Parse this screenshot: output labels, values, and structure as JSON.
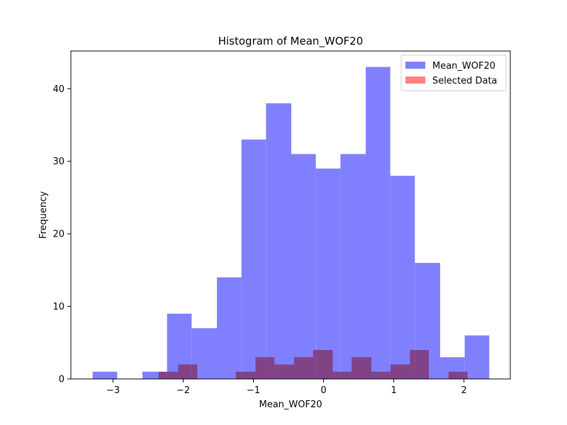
{
  "chart_data": {
    "type": "bar",
    "title": "Histogram of Mean_WOF20",
    "xlabel": "Mean_WOF20",
    "ylabel": "Frequency",
    "xlim": [
      -3.6,
      2.66
    ],
    "ylim": [
      0,
      45.2
    ],
    "x_ticks": [
      -3,
      -2,
      -1,
      0,
      1,
      2
    ],
    "y_ticks": [
      0,
      10,
      20,
      30,
      40
    ],
    "grid": false,
    "legend_placement": "top-right",
    "series": [
      {
        "name": "Mean_WOF20",
        "color": "#8080ff",
        "bins": [
          {
            "x0": -3.29,
            "x1": -2.94,
            "count": 1
          },
          {
            "x0": -2.94,
            "x1": -2.58,
            "count": 0
          },
          {
            "x0": -2.58,
            "x1": -2.23,
            "count": 1
          },
          {
            "x0": -2.23,
            "x1": -1.88,
            "count": 9
          },
          {
            "x0": -1.88,
            "x1": -1.52,
            "count": 7
          },
          {
            "x0": -1.52,
            "x1": -1.17,
            "count": 14
          },
          {
            "x0": -1.17,
            "x1": -0.82,
            "count": 33
          },
          {
            "x0": -0.82,
            "x1": -0.46,
            "count": 38
          },
          {
            "x0": -0.46,
            "x1": -0.11,
            "count": 31
          },
          {
            "x0": -0.11,
            "x1": 0.24,
            "count": 29
          },
          {
            "x0": 0.24,
            "x1": 0.6,
            "count": 31
          },
          {
            "x0": 0.6,
            "x1": 0.95,
            "count": 43
          },
          {
            "x0": 0.95,
            "x1": 1.3,
            "count": 28
          },
          {
            "x0": 1.3,
            "x1": 1.66,
            "count": 16
          },
          {
            "x0": 1.66,
            "x1": 2.01,
            "count": 3
          },
          {
            "x0": 2.01,
            "x1": 2.36,
            "count": 6
          }
        ]
      },
      {
        "name": "Selected Data",
        "color": "#ff8080",
        "bins": [
          {
            "x0": -2.35,
            "x1": -2.07,
            "count": 1
          },
          {
            "x0": -2.07,
            "x1": -1.8,
            "count": 2
          },
          {
            "x0": -1.8,
            "x1": -1.52,
            "count": 0
          },
          {
            "x0": -1.52,
            "x1": -1.25,
            "count": 0
          },
          {
            "x0": -1.25,
            "x1": -0.97,
            "count": 1
          },
          {
            "x0": -0.97,
            "x1": -0.7,
            "count": 3
          },
          {
            "x0": -0.7,
            "x1": -0.42,
            "count": 2
          },
          {
            "x0": -0.42,
            "x1": -0.15,
            "count": 3
          },
          {
            "x0": -0.15,
            "x1": 0.13,
            "count": 4
          },
          {
            "x0": 0.13,
            "x1": 0.4,
            "count": 1
          },
          {
            "x0": 0.4,
            "x1": 0.68,
            "count": 3
          },
          {
            "x0": 0.68,
            "x1": 0.95,
            "count": 1
          },
          {
            "x0": 0.95,
            "x1": 1.23,
            "count": 2
          },
          {
            "x0": 1.23,
            "x1": 1.5,
            "count": 4
          },
          {
            "x0": 1.5,
            "x1": 1.78,
            "count": 0
          },
          {
            "x0": 1.78,
            "x1": 2.05,
            "count": 1
          }
        ]
      }
    ]
  }
}
